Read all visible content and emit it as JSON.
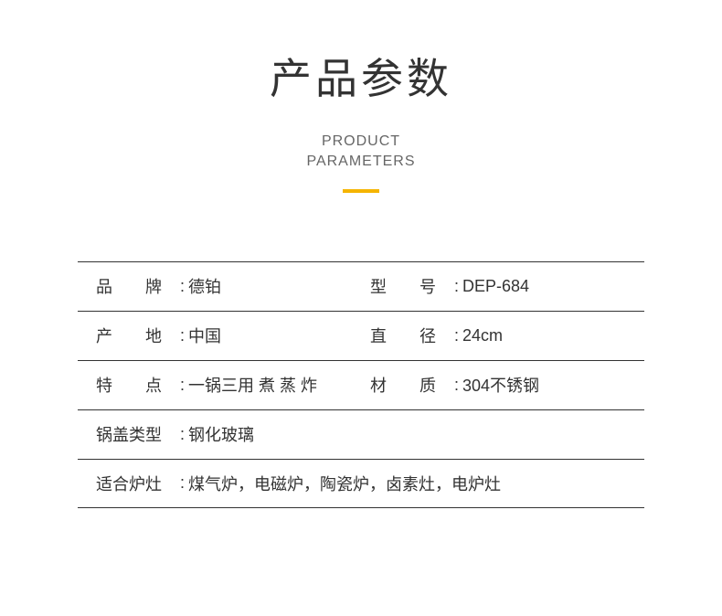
{
  "header": {
    "title_cn": "产品参数",
    "title_en_line1": "PRODUCT",
    "title_en_line2": "PARAMETERS",
    "accent_color": "#f5b400"
  },
  "rows": [
    {
      "left": {
        "label": "品　　牌",
        "value": "德铂"
      },
      "right": {
        "label": "型　　号",
        "value": "DEP-684"
      }
    },
    {
      "left": {
        "label": "产　　地",
        "value": "中国"
      },
      "right": {
        "label": "直　　径",
        "value": "24cm"
      }
    },
    {
      "left": {
        "label": "特　　点",
        "value": "一锅三用 煮 蒸 炸"
      },
      "right": {
        "label": "材　　质",
        "value": "304不锈钢"
      }
    }
  ],
  "full_rows": [
    {
      "label": "锅盖类型",
      "value": "钢化玻璃"
    },
    {
      "label": "适合炉灶",
      "value": "煤气炉，电磁炉，陶瓷炉，卤素灶，电炉灶"
    }
  ]
}
